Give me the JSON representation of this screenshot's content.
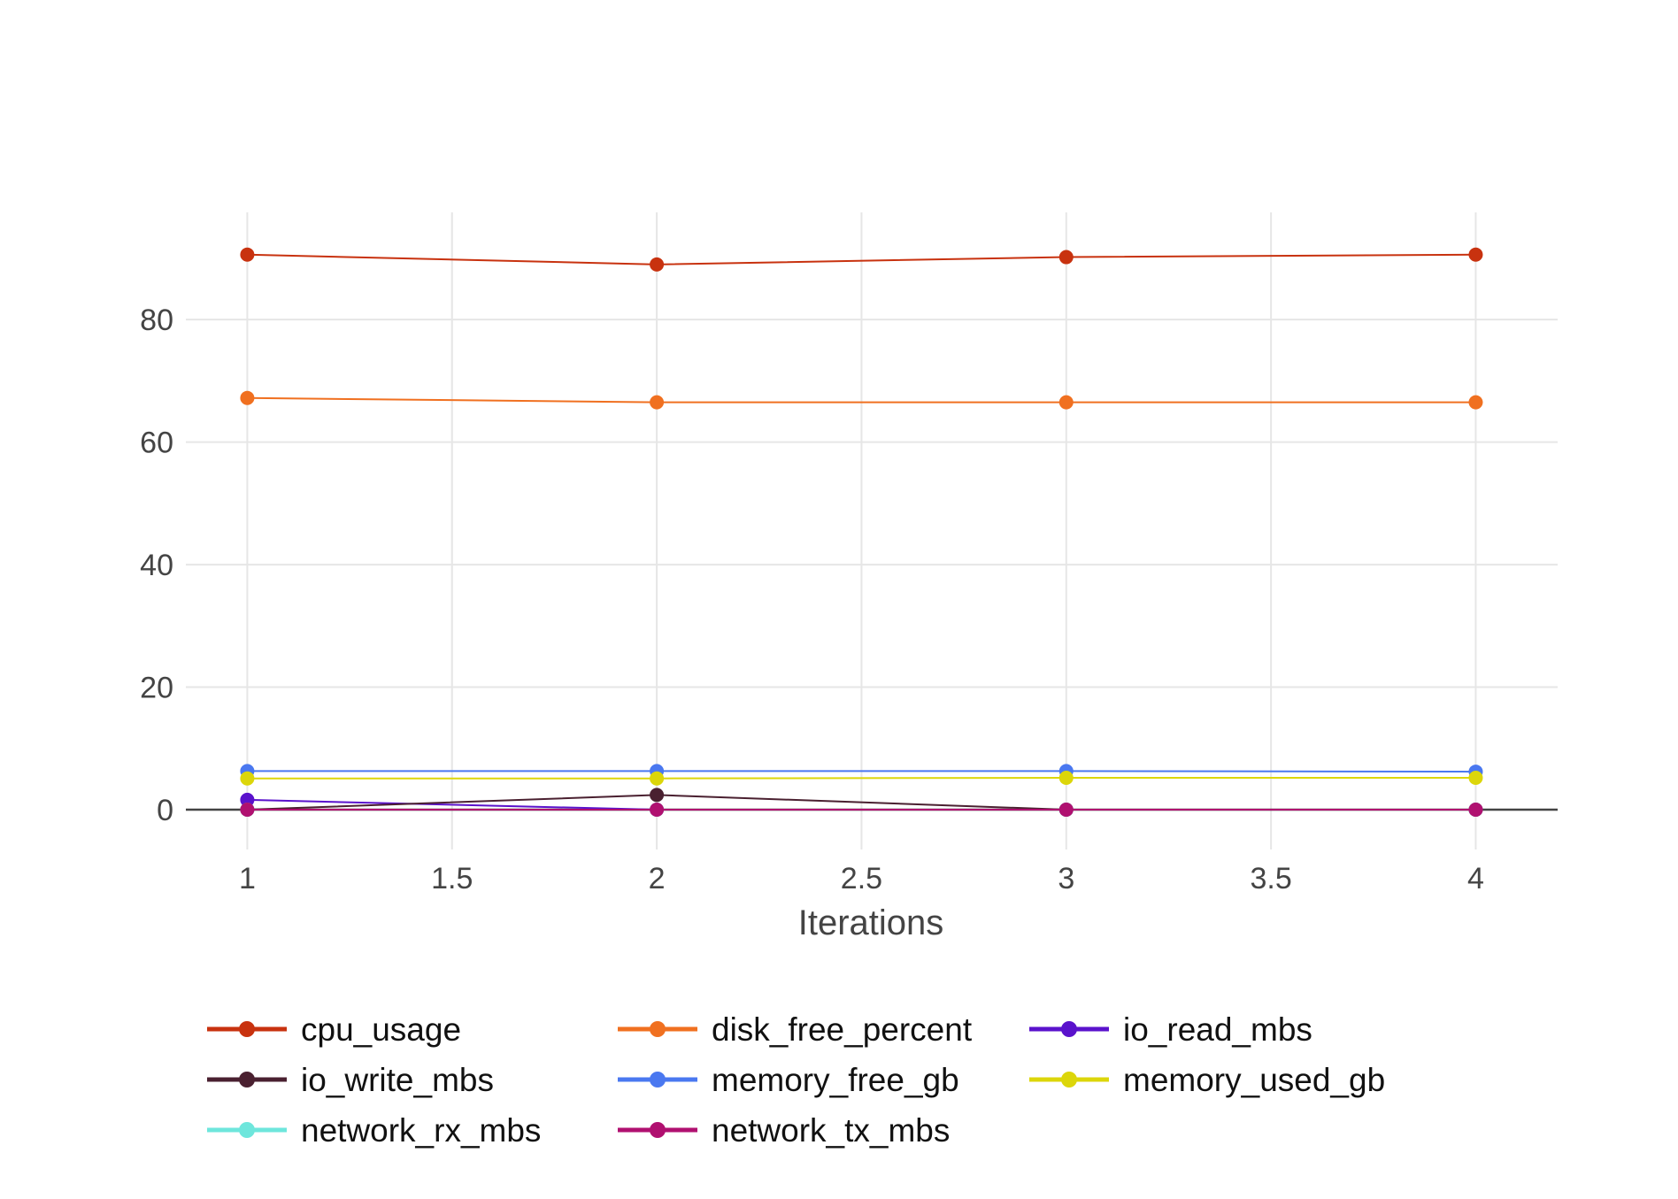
{
  "chart_data": {
    "type": "line",
    "title": "",
    "xlabel": "Iterations",
    "ylabel": "",
    "x": [
      1,
      2,
      3,
      4
    ],
    "xlim": [
      0.85,
      4.2
    ],
    "ylim": [
      -6.5,
      97.5
    ],
    "x_ticks": [
      1,
      1.5,
      2,
      2.5,
      3,
      3.5,
      4
    ],
    "x_tick_labels": [
      "1",
      "1.5",
      "2",
      "2.5",
      "3",
      "3.5",
      "4"
    ],
    "y_ticks": [
      0,
      20,
      40,
      60,
      80
    ],
    "y_tick_labels": [
      "0",
      "20",
      "40",
      "60",
      "80"
    ],
    "grid": true,
    "legend_position": "bottom",
    "series": [
      {
        "name": "cpu_usage",
        "color": "#c8320f",
        "values": [
          90.6,
          89.0,
          90.2,
          90.6
        ]
      },
      {
        "name": "disk_free_percent",
        "color": "#f07020",
        "values": [
          67.2,
          66.5,
          66.5,
          66.5
        ]
      },
      {
        "name": "io_read_mbs",
        "color": "#5a12cc",
        "values": [
          1.6,
          0.0,
          0.0,
          0.0
        ]
      },
      {
        "name": "io_write_mbs",
        "color": "#4a2030",
        "values": [
          0.0,
          2.4,
          0.0,
          0.0
        ]
      },
      {
        "name": "memory_free_gb",
        "color": "#4a78f0",
        "values": [
          6.3,
          6.3,
          6.3,
          6.2
        ]
      },
      {
        "name": "memory_used_gb",
        "color": "#dcd60a",
        "values": [
          5.1,
          5.1,
          5.2,
          5.2
        ]
      },
      {
        "name": "network_rx_mbs",
        "color": "#6ee6dc",
        "values": [
          0.0,
          0.0,
          0.0,
          0.0
        ]
      },
      {
        "name": "network_tx_mbs",
        "color": "#b01070",
        "values": [
          0.0,
          0.0,
          0.0,
          0.0
        ]
      }
    ]
  }
}
